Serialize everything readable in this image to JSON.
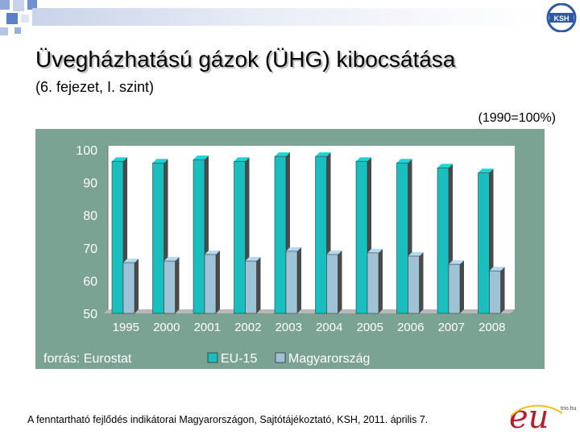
{
  "header": {
    "title": "Üvegházhatású gázok (ÜHG) kibocsátása",
    "subtitle": "(6. fejezet, I. szint)",
    "unit_note": "(1990=100%)",
    "logo_text": "KSH"
  },
  "chart_data": {
    "type": "bar",
    "categories": [
      "1995",
      "2000",
      "2001",
      "2002",
      "2003",
      "2004",
      "2005",
      "2006",
      "2007",
      "2008"
    ],
    "series": [
      {
        "name": "EU-15",
        "color": "#19bfbf",
        "values": [
          96.5,
          96.0,
          97.0,
          96.5,
          98.0,
          98.0,
          96.5,
          96.0,
          94.5,
          93.0
        ]
      },
      {
        "name": "Magyarország",
        "color": "#9fc3d6",
        "values": [
          65.5,
          66.0,
          68.0,
          66.0,
          69.0,
          68.0,
          68.5,
          67.5,
          65.0,
          63.0
        ]
      }
    ],
    "ylim": [
      50,
      100
    ],
    "yticks": [
      "50",
      "60",
      "70",
      "80",
      "90",
      "100"
    ],
    "grid": false,
    "legend_position": "bottom",
    "source_note": "forrás: Eurostat"
  },
  "footer": {
    "note": "A fenntartható fejlődés indikátorai Magyarországon, Sajtótájékoztató, KSH, 2011. április 7.",
    "logo_text": "eu",
    "logo_suffix": "trio.hu"
  }
}
